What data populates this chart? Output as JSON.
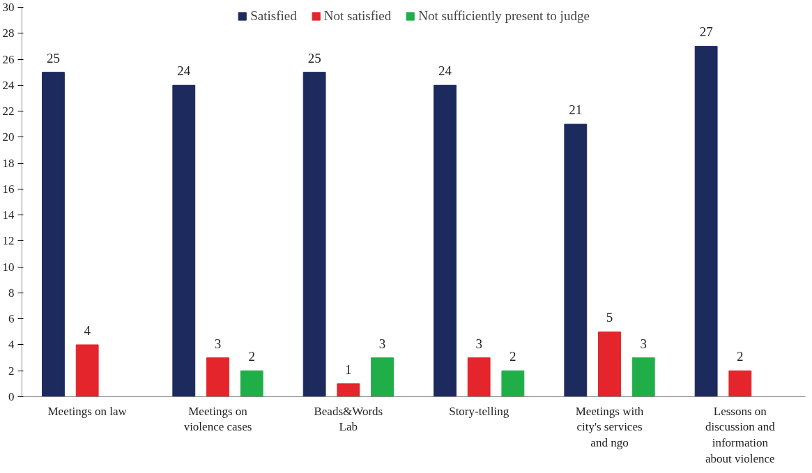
{
  "chart_data": {
    "type": "bar",
    "categories": [
      "Meetings on law",
      "Meetings on\nviolence cases",
      "Beads&Words\nLab",
      "Story-telling",
      "Meetings with\ncity's services\nand ngo",
      "Lessons on\ndiscussion and\ninformation\nabout violence"
    ],
    "series": [
      {
        "name": "Satisfied",
        "color": "#1c2a5e",
        "values": [
          25,
          24,
          25,
          24,
          21,
          27
        ]
      },
      {
        "name": "Not satisfied",
        "color": "#e4252b",
        "values": [
          4,
          3,
          1,
          3,
          5,
          2
        ]
      },
      {
        "name": "Not sufficiently present to judge",
        "color": "#20ae48",
        "values": [
          null,
          2,
          3,
          2,
          3,
          null
        ]
      }
    ],
    "ylim": [
      0,
      30
    ],
    "yticks": [
      0,
      2,
      4,
      6,
      8,
      10,
      12,
      14,
      16,
      18,
      20,
      22,
      24,
      26,
      28,
      30
    ],
    "data_labels": true,
    "legend": "top",
    "grid": false
  }
}
